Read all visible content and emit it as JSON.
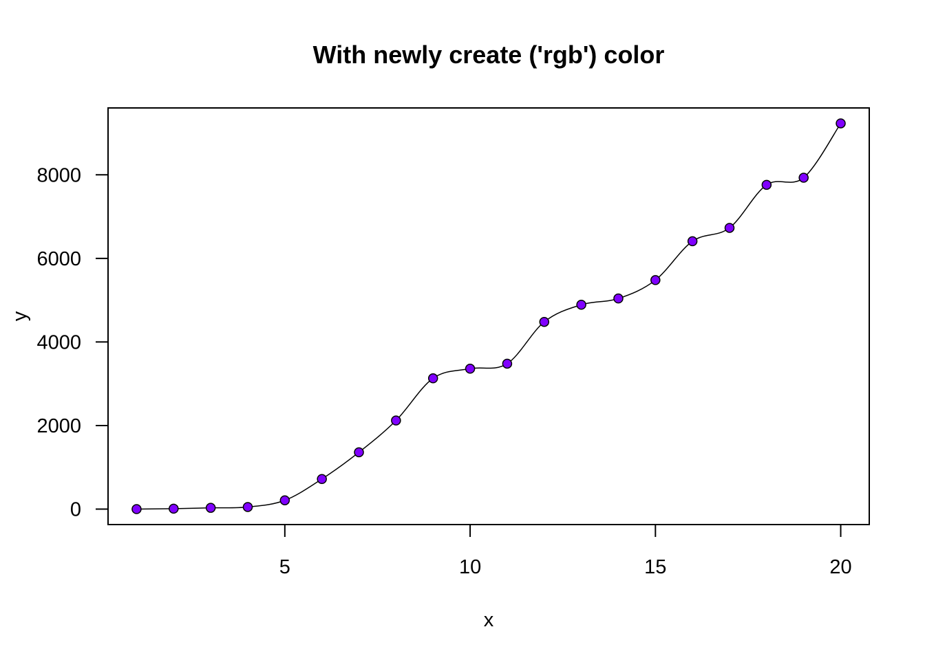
{
  "chart_data": {
    "type": "line",
    "title": "With newly create ('rgb') color",
    "xlabel": "x",
    "ylabel": "y",
    "xlim": [
      0.23,
      20.77
    ],
    "ylim": [
      -370,
      9600
    ],
    "x_ticks": [
      5,
      10,
      15,
      20
    ],
    "y_ticks": [
      0,
      2000,
      4000,
      6000,
      8000
    ],
    "x_tick_labels": [
      "5",
      "10",
      "15",
      "20"
    ],
    "y_tick_labels": [
      "0",
      "2000",
      "4000",
      "6000",
      "8000"
    ],
    "grid": false,
    "legend": "none",
    "point_color": "#8000ff",
    "line_color": "#000000",
    "series": [
      {
        "x": [
          1,
          2,
          3,
          4,
          5,
          6,
          7,
          8,
          9,
          10,
          11,
          12,
          13,
          14,
          15,
          16,
          17,
          18,
          19,
          20
        ],
        "values": [
          0,
          10,
          30,
          50,
          210,
          720,
          1360,
          2120,
          3130,
          3360,
          3480,
          4480,
          4890,
          5040,
          5480,
          6410,
          6730,
          7760,
          7930,
          9230
        ]
      }
    ]
  }
}
